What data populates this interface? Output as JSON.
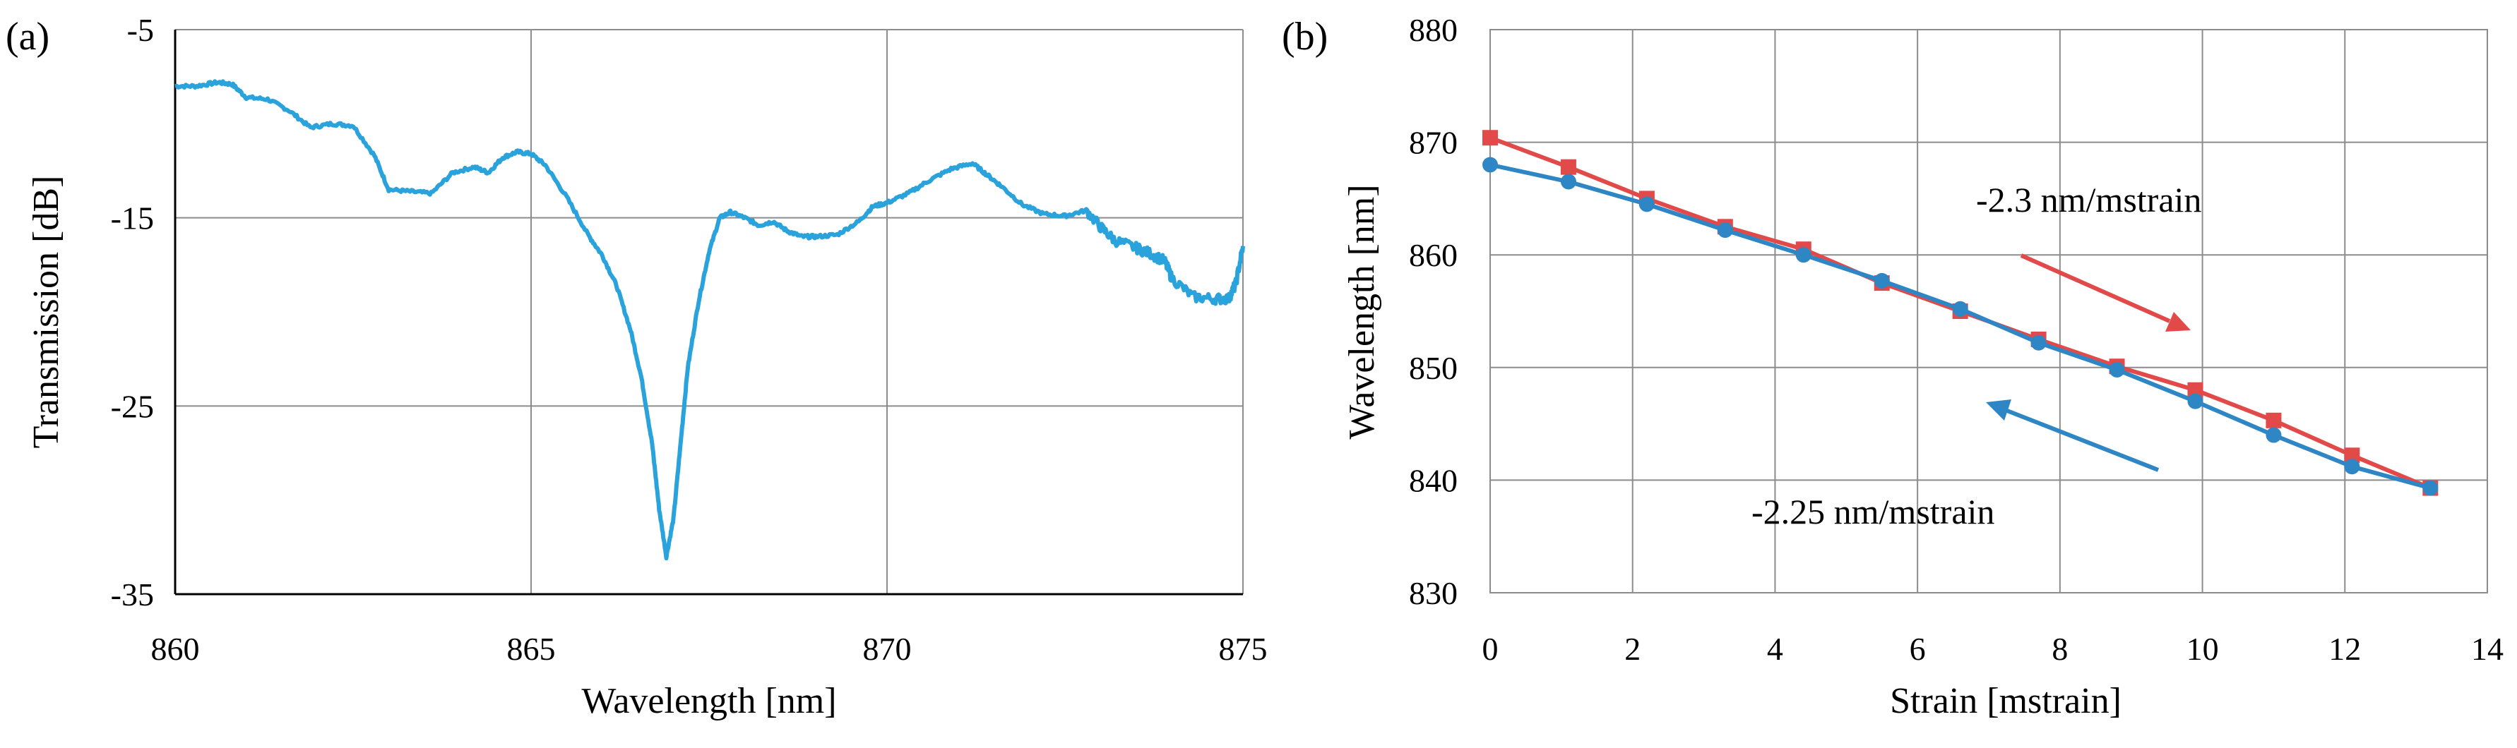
{
  "chart_data": [
    {
      "type": "line",
      "panel_label": "(a)",
      "xlabel": "Wavelength [nm]",
      "ylabel": "Transmission [dB]",
      "xlim": [
        860,
        875
      ],
      "ylim": [
        -35,
        -5
      ],
      "xticks": [
        860,
        865,
        870,
        875
      ],
      "yticks": [
        -5,
        -15,
        -25,
        -35
      ],
      "grid": true,
      "line_color": "#2aa3dc",
      "series": [
        {
          "x": [
            860.0,
            860.3,
            860.6,
            860.8,
            861.0,
            861.3,
            861.6,
            861.9,
            862.2,
            862.5,
            862.8,
            863.0,
            863.3,
            863.6,
            863.9,
            864.2,
            864.4,
            864.6,
            864.8,
            865.0,
            865.2,
            865.5,
            865.8,
            866.0,
            866.2,
            866.4,
            866.55,
            866.7,
            866.8,
            866.9,
            867.0,
            867.1,
            867.2,
            867.35,
            867.5,
            867.65,
            867.8,
            868.0,
            868.2,
            868.4,
            868.6,
            868.8,
            869.0,
            869.3,
            869.6,
            869.8,
            870.0,
            870.3,
            870.6,
            870.9,
            871.2,
            871.4,
            871.6,
            871.9,
            872.2,
            872.5,
            872.8,
            873.0,
            873.2,
            873.5,
            873.7,
            873.9,
            874.0,
            874.3,
            874.6,
            874.8,
            874.9,
            875.0
          ],
          "y": [
            -8.0,
            -8.0,
            -7.8,
            -7.9,
            -8.6,
            -8.7,
            -9.3,
            -10.2,
            -10.0,
            -10.1,
            -11.7,
            -13.5,
            -13.6,
            -13.7,
            -12.6,
            -12.3,
            -12.6,
            -11.8,
            -11.5,
            -11.6,
            -12.2,
            -13.9,
            -15.9,
            -17.0,
            -18.6,
            -21.0,
            -23.5,
            -27.0,
            -30.5,
            -33.0,
            -31.0,
            -27.0,
            -23.0,
            -19.5,
            -16.8,
            -15.0,
            -14.7,
            -15.0,
            -15.4,
            -15.2,
            -15.7,
            -16.0,
            -16.0,
            -15.9,
            -15.2,
            -14.4,
            -14.2,
            -13.7,
            -13.0,
            -12.4,
            -12.1,
            -12.7,
            -13.3,
            -14.3,
            -14.8,
            -14.9,
            -14.6,
            -15.5,
            -16.2,
            -16.6,
            -16.9,
            -17.3,
            -18.2,
            -19.2,
            -19.3,
            -19.3,
            -18.5,
            -16.5
          ]
        }
      ]
    },
    {
      "type": "line",
      "panel_label": "(b)",
      "xlabel": "Strain [mstrain]",
      "ylabel": "Wavelength [nm]",
      "xlim": [
        0,
        14
      ],
      "ylim": [
        830,
        880
      ],
      "xticks": [
        0,
        2,
        4,
        6,
        8,
        10,
        12,
        14
      ],
      "yticks": [
        830,
        840,
        850,
        860,
        870,
        880
      ],
      "grid": true,
      "x": [
        0,
        1.1,
        2.2,
        3.3,
        4.4,
        5.5,
        6.6,
        7.7,
        8.8,
        9.9,
        11.0,
        12.1,
        13.2
      ],
      "series": [
        {
          "color": "#e24a4a",
          "marker": "square",
          "values": [
            870.4,
            867.8,
            865.0,
            862.5,
            860.5,
            857.5,
            855.0,
            852.5,
            850.1,
            848.0,
            845.3,
            842.2,
            839.3
          ]
        },
        {
          "color": "#2f86c5",
          "marker": "circle",
          "values": [
            868.0,
            866.5,
            864.5,
            862.2,
            860.0,
            857.7,
            855.2,
            852.2,
            849.8,
            847.0,
            844.0,
            841.2,
            839.3
          ]
        }
      ],
      "annotations": [
        {
          "text": "-2.3 nm/mstrain",
          "color": "#e24a4a"
        },
        {
          "text": "-2.25 nm/mstrain",
          "color": "#2f86c5"
        }
      ]
    }
  ]
}
